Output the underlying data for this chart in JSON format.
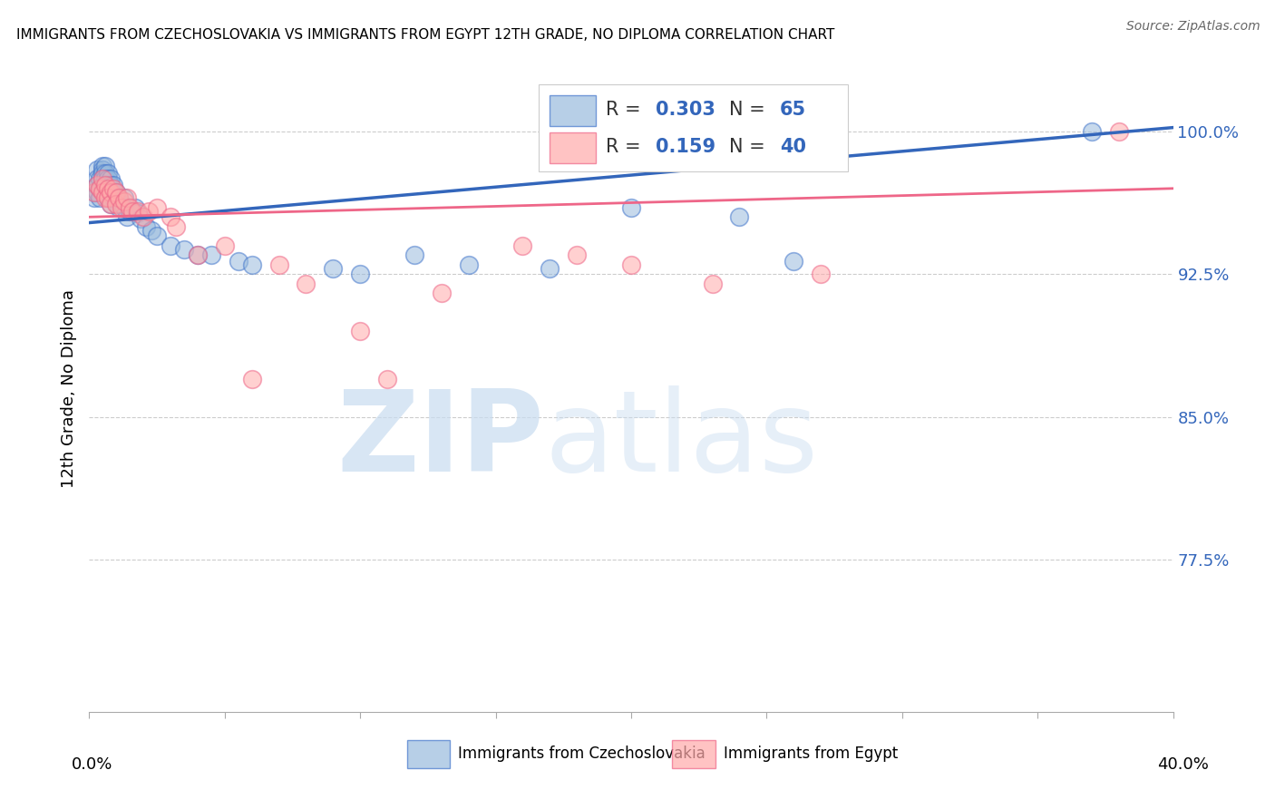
{
  "title": "IMMIGRANTS FROM CZECHOSLOVAKIA VS IMMIGRANTS FROM EGYPT 12TH GRADE, NO DIPLOMA CORRELATION CHART",
  "source": "Source: ZipAtlas.com",
  "ylabel": "12th Grade, No Diploma",
  "ytick_vals": [
    1.0,
    0.925,
    0.85,
    0.775
  ],
  "ytick_labels": [
    "100.0%",
    "92.5%",
    "85.0%",
    "77.5%"
  ],
  "xlim": [
    0.0,
    0.4
  ],
  "ylim": [
    0.695,
    1.035
  ],
  "blue_R": 0.303,
  "blue_N": 65,
  "pink_R": 0.159,
  "pink_N": 40,
  "blue_color": "#99BBDD",
  "pink_color": "#FFAAAA",
  "blue_edge_color": "#4477CC",
  "pink_edge_color": "#EE6688",
  "blue_line_color": "#3366BB",
  "pink_line_color": "#EE6688",
  "legend_label_blue": "Immigrants from Czechoslovakia",
  "legend_label_pink": "Immigrants from Egypt",
  "blue_x": [
    0.002,
    0.002,
    0.002,
    0.003,
    0.003,
    0.003,
    0.003,
    0.004,
    0.004,
    0.004,
    0.005,
    0.005,
    0.005,
    0.005,
    0.005,
    0.005,
    0.006,
    0.006,
    0.006,
    0.006,
    0.006,
    0.006,
    0.007,
    0.007,
    0.007,
    0.007,
    0.007,
    0.008,
    0.008,
    0.008,
    0.008,
    0.008,
    0.009,
    0.009,
    0.009,
    0.01,
    0.01,
    0.011,
    0.011,
    0.012,
    0.013,
    0.013,
    0.014,
    0.015,
    0.017,
    0.018,
    0.019,
    0.021,
    0.023,
    0.025,
    0.03,
    0.035,
    0.04,
    0.045,
    0.055,
    0.06,
    0.09,
    0.1,
    0.12,
    0.14,
    0.17,
    0.2,
    0.24,
    0.26,
    0.37
  ],
  "blue_y": [
    0.97,
    0.968,
    0.965,
    0.98,
    0.975,
    0.972,
    0.968,
    0.975,
    0.97,
    0.965,
    0.982,
    0.98,
    0.978,
    0.975,
    0.972,
    0.97,
    0.982,
    0.978,
    0.975,
    0.972,
    0.97,
    0.968,
    0.978,
    0.975,
    0.972,
    0.968,
    0.965,
    0.975,
    0.972,
    0.968,
    0.965,
    0.962,
    0.972,
    0.968,
    0.965,
    0.968,
    0.965,
    0.965,
    0.96,
    0.962,
    0.965,
    0.96,
    0.955,
    0.958,
    0.96,
    0.957,
    0.954,
    0.95,
    0.948,
    0.945,
    0.94,
    0.938,
    0.935,
    0.935,
    0.932,
    0.93,
    0.928,
    0.925,
    0.935,
    0.93,
    0.928,
    0.96,
    0.955,
    0.932,
    1.0
  ],
  "pink_x": [
    0.002,
    0.003,
    0.004,
    0.005,
    0.005,
    0.006,
    0.006,
    0.007,
    0.007,
    0.008,
    0.008,
    0.009,
    0.01,
    0.01,
    0.011,
    0.012,
    0.013,
    0.014,
    0.015,
    0.016,
    0.018,
    0.02,
    0.022,
    0.025,
    0.03,
    0.032,
    0.04,
    0.05,
    0.06,
    0.07,
    0.08,
    0.1,
    0.11,
    0.13,
    0.16,
    0.18,
    0.2,
    0.23,
    0.27,
    0.38
  ],
  "pink_y": [
    0.968,
    0.972,
    0.97,
    0.975,
    0.968,
    0.972,
    0.965,
    0.97,
    0.965,
    0.968,
    0.962,
    0.97,
    0.968,
    0.962,
    0.965,
    0.96,
    0.963,
    0.965,
    0.96,
    0.958,
    0.958,
    0.955,
    0.958,
    0.96,
    0.955,
    0.95,
    0.935,
    0.94,
    0.87,
    0.93,
    0.92,
    0.895,
    0.87,
    0.915,
    0.94,
    0.935,
    0.93,
    0.92,
    0.925,
    1.0
  ]
}
